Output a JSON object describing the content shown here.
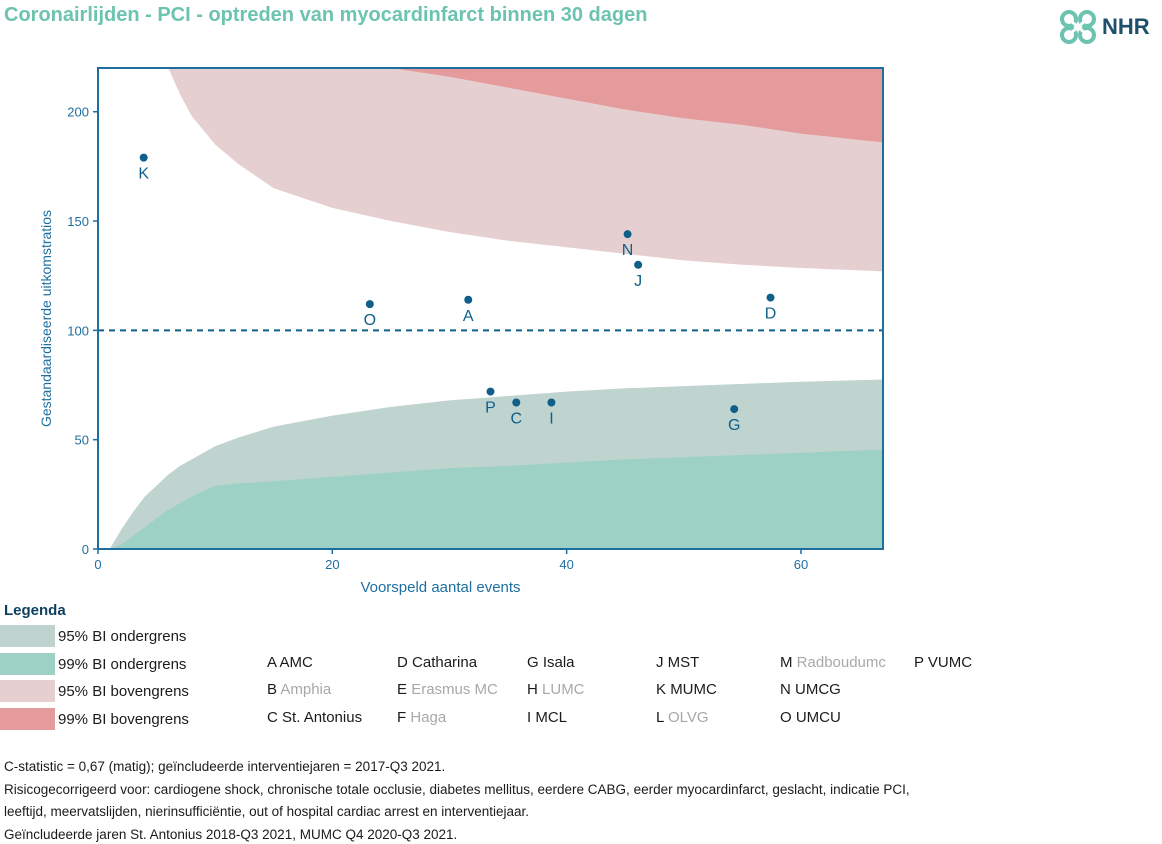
{
  "title": "Coronairlijden - PCI - optreden van myocardinfarct binnen 30 dagen",
  "logo_text": "NHR",
  "colors": {
    "title": "#6cc3b0",
    "axis": "#1e6fa0",
    "point": "#0e5f8a",
    "lower95": "#bfd3cf",
    "lower99": "#9ed1c5",
    "upper95": "#e6cfd0",
    "upper99": "#e59a9c"
  },
  "chart_data": {
    "type": "scatter",
    "xlabel": "Voorspeld aantal events",
    "ylabel": "Gestandaardiseerde uitkomstratios",
    "xlim": [
      0,
      67
    ],
    "ylim": [
      0,
      220
    ],
    "x_ticks": [
      0,
      20,
      40,
      60
    ],
    "y_ticks": [
      0,
      50,
      100,
      150,
      200
    ],
    "reference_line": 100,
    "points": [
      {
        "label": "K",
        "x": 3.9,
        "y": 179
      },
      {
        "label": "O",
        "x": 23.2,
        "y": 112
      },
      {
        "label": "A",
        "x": 31.6,
        "y": 114
      },
      {
        "label": "N",
        "x": 45.2,
        "y": 144
      },
      {
        "label": "J",
        "x": 46.1,
        "y": 130
      },
      {
        "label": "D",
        "x": 57.4,
        "y": 115
      },
      {
        "label": "P",
        "x": 33.5,
        "y": 72
      },
      {
        "label": "C",
        "x": 35.7,
        "y": 67
      },
      {
        "label": "I",
        "x": 38.7,
        "y": 67
      },
      {
        "label": "G",
        "x": 54.3,
        "y": 64
      }
    ],
    "bands": {
      "x": [
        1,
        2,
        3,
        4,
        5,
        6,
        7,
        8,
        10,
        12,
        15,
        20,
        25,
        30,
        35,
        40,
        45,
        50,
        55,
        60,
        67
      ],
      "lower95": [
        0,
        9,
        17,
        24,
        29,
        34,
        38,
        41,
        47,
        51,
        56,
        61,
        65,
        68,
        70,
        72,
        73.5,
        74.5,
        75.5,
        76.5,
        77.5
      ],
      "lower99": [
        0,
        2,
        6,
        10,
        14,
        18,
        21,
        24,
        29,
        30,
        31,
        33,
        35,
        37,
        38,
        39.5,
        41,
        42,
        43,
        44,
        45.5
      ],
      "upper95": [
        null,
        null,
        null,
        null,
        null,
        220,
        208,
        198,
        185,
        176,
        165,
        156,
        150,
        145,
        141,
        138,
        135,
        132,
        130,
        128.5,
        127
      ],
      "upper99": [
        null,
        null,
        null,
        null,
        null,
        null,
        null,
        null,
        null,
        null,
        null,
        null,
        220,
        216,
        211,
        206,
        201,
        197,
        194,
        190,
        186
      ]
    }
  },
  "legend": {
    "title": "Legenda",
    "items": [
      {
        "label": "95% BI ondergrens",
        "color": "#bfd3cf"
      },
      {
        "label": "99% BI ondergrens",
        "color": "#9ed1c5"
      },
      {
        "label": "95% BI bovengrens",
        "color": "#e6cfd0"
      },
      {
        "label": "99% BI bovengrens",
        "color": "#e59a9c"
      }
    ]
  },
  "hospitals": [
    {
      "code": "A",
      "name": "AMC",
      "active": true
    },
    {
      "code": "B",
      "name": "Amphia",
      "active": false
    },
    {
      "code": "C",
      "name": "St. Antonius",
      "active": true
    },
    {
      "code": "D",
      "name": "Catharina",
      "active": true
    },
    {
      "code": "E",
      "name": "Erasmus MC",
      "active": false
    },
    {
      "code": "F",
      "name": "Haga",
      "active": false
    },
    {
      "code": "G",
      "name": "Isala",
      "active": true
    },
    {
      "code": "H",
      "name": "LUMC",
      "active": false
    },
    {
      "code": "I",
      "name": "MCL",
      "active": true
    },
    {
      "code": "J",
      "name": "MST",
      "active": true
    },
    {
      "code": "K",
      "name": "MUMC",
      "active": true
    },
    {
      "code": "L",
      "name": "OLVG",
      "active": false
    },
    {
      "code": "M",
      "name": "Radboudumc",
      "active": false
    },
    {
      "code": "N",
      "name": "UMCG",
      "active": true
    },
    {
      "code": "O",
      "name": "UMCU",
      "active": true
    },
    {
      "code": "P",
      "name": "VUMC",
      "active": true
    }
  ],
  "footnotes": [
    "C-statistic = 0,67 (matig); geïncludeerde interventiejaren = 2017-Q3 2021.",
    "Risicogecorrigeerd voor: cardiogene shock, chronische totale occlusie, diabetes mellitus, eerdere CABG, eerder myocardinfarct, geslacht, indicatie PCI,",
    "leeftijd, meervatslijden, nierinsufficiëntie, out of hospital cardiac arrest en interventiejaar.",
    "Geïncludeerde jaren St. Antonius 2018-Q3 2021, MUMC Q4 2020-Q3 2021."
  ]
}
